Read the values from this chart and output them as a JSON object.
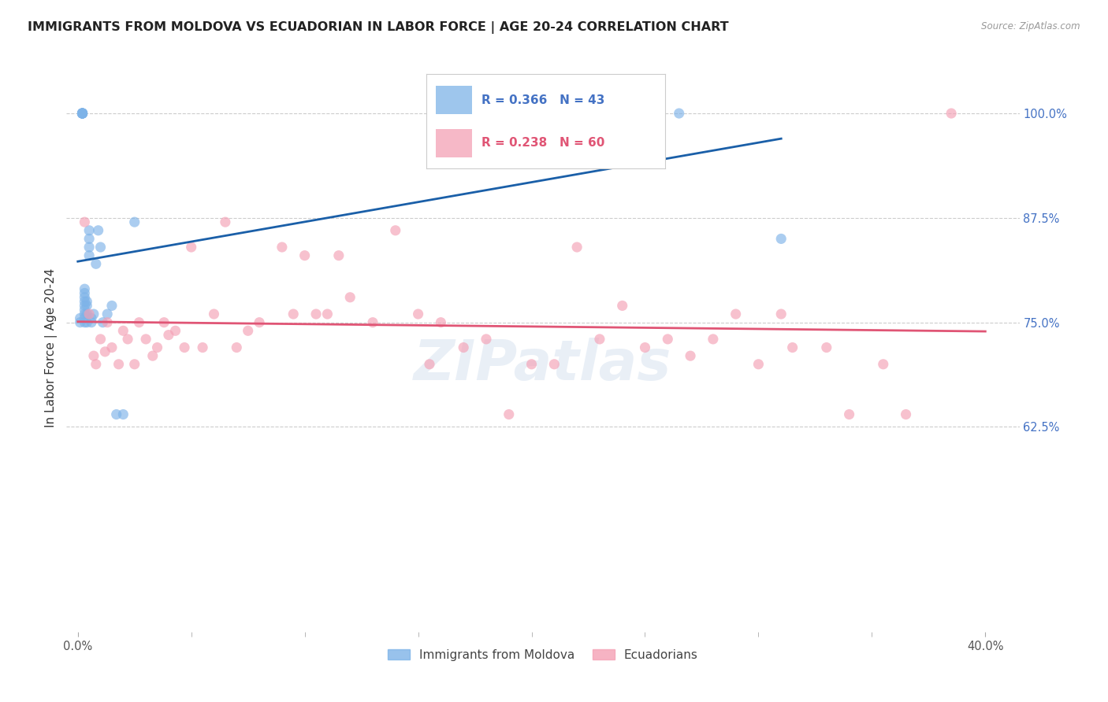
{
  "title": "IMMIGRANTS FROM MOLDOVA VS ECUADORIAN IN LABOR FORCE | AGE 20-24 CORRELATION CHART",
  "source": "Source: ZipAtlas.com",
  "ylabel": "In Labor Force | Age 20-24",
  "xlim": [
    -0.005,
    0.415
  ],
  "ylim": [
    0.38,
    1.06
  ],
  "yticks": [
    1.0,
    0.875,
    0.75,
    0.625
  ],
  "ytick_labels": [
    "100.0%",
    "87.5%",
    "75.0%",
    "62.5%"
  ],
  "xtick_left_label": "0.0%",
  "xtick_right_label": "40.0%",
  "blue_color": "#7EB3E8",
  "pink_color": "#F4A0B5",
  "blue_line_color": "#1A5FA8",
  "pink_line_color": "#E05575",
  "legend_blue_r": "R = 0.366",
  "legend_blue_n": "N = 43",
  "legend_pink_r": "R = 0.238",
  "legend_pink_n": "N = 60",
  "legend_label_blue": "Immigrants from Moldova",
  "legend_label_pink": "Ecuadorians",
  "moldova_x": [
    0.001,
    0.001,
    0.002,
    0.002,
    0.002,
    0.002,
    0.002,
    0.002,
    0.002,
    0.002,
    0.003,
    0.003,
    0.003,
    0.003,
    0.003,
    0.003,
    0.003,
    0.003,
    0.003,
    0.004,
    0.004,
    0.004,
    0.004,
    0.005,
    0.005,
    0.005,
    0.005,
    0.006,
    0.006,
    0.007,
    0.008,
    0.009,
    0.01,
    0.011,
    0.013,
    0.015,
    0.017,
    0.02,
    0.025,
    0.16,
    0.2,
    0.265,
    0.31
  ],
  "moldova_y": [
    0.75,
    0.755,
    1.0,
    1.0,
    1.0,
    1.0,
    1.0,
    1.0,
    1.0,
    1.0,
    0.75,
    0.755,
    0.76,
    0.765,
    0.77,
    0.775,
    0.78,
    0.785,
    0.79,
    0.75,
    0.76,
    0.77,
    0.775,
    0.83,
    0.84,
    0.85,
    0.86,
    0.75,
    0.755,
    0.76,
    0.82,
    0.86,
    0.84,
    0.75,
    0.76,
    0.77,
    0.64,
    0.64,
    0.87,
    1.0,
    1.0,
    1.0,
    0.85
  ],
  "ecuador_x": [
    0.003,
    0.005,
    0.007,
    0.008,
    0.01,
    0.012,
    0.013,
    0.015,
    0.018,
    0.02,
    0.022,
    0.025,
    0.027,
    0.03,
    0.033,
    0.035,
    0.038,
    0.04,
    0.043,
    0.047,
    0.05,
    0.055,
    0.06,
    0.065,
    0.07,
    0.075,
    0.08,
    0.09,
    0.095,
    0.1,
    0.105,
    0.11,
    0.115,
    0.12,
    0.13,
    0.14,
    0.15,
    0.155,
    0.16,
    0.17,
    0.18,
    0.19,
    0.2,
    0.21,
    0.22,
    0.23,
    0.24,
    0.25,
    0.26,
    0.27,
    0.28,
    0.29,
    0.3,
    0.31,
    0.315,
    0.33,
    0.34,
    0.355,
    0.365,
    0.385
  ],
  "ecuador_y": [
    0.87,
    0.76,
    0.71,
    0.7,
    0.73,
    0.715,
    0.75,
    0.72,
    0.7,
    0.74,
    0.73,
    0.7,
    0.75,
    0.73,
    0.71,
    0.72,
    0.75,
    0.735,
    0.74,
    0.72,
    0.84,
    0.72,
    0.76,
    0.87,
    0.72,
    0.74,
    0.75,
    0.84,
    0.76,
    0.83,
    0.76,
    0.76,
    0.83,
    0.78,
    0.75,
    0.86,
    0.76,
    0.7,
    0.75,
    0.72,
    0.73,
    0.64,
    0.7,
    0.7,
    0.84,
    0.73,
    0.77,
    0.72,
    0.73,
    0.71,
    0.73,
    0.76,
    0.7,
    0.76,
    0.72,
    0.72,
    0.64,
    0.7,
    0.64,
    1.0
  ],
  "title_fontsize": 11.5,
  "tick_fontsize": 10.5,
  "watermark": "ZIPatlas",
  "background_color": "#FFFFFF",
  "right_tick_color": "#4472C4",
  "grid_color": "#CCCCCC"
}
